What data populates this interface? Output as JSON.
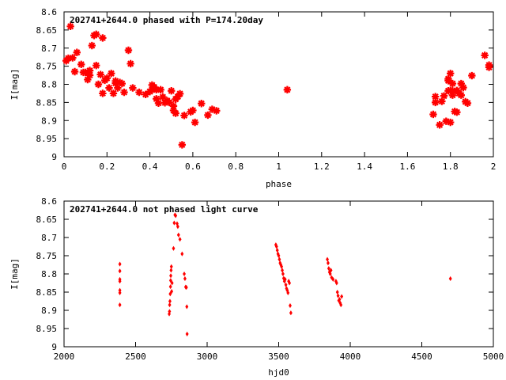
{
  "chart_data": [
    {
      "type": "scatter",
      "title": "202741+2644.0 phased with P=174.20day",
      "xlabel": "phase",
      "ylabel": "I[mag]",
      "xlim": [
        0,
        2
      ],
      "ylim": [
        8.6,
        9.0
      ],
      "y_inverted": true,
      "xticks": [
        "0",
        "0.2",
        "0.4",
        "0.6",
        "0.8",
        "1",
        "1.2",
        "1.4",
        "1.6",
        "1.8",
        "2"
      ],
      "yticks": [
        "8.6",
        "8.65",
        "8.7",
        "8.75",
        "8.8",
        "8.85",
        "8.9",
        "8.95",
        "9"
      ],
      "grid": false,
      "color": "#ff0000",
      "marker": "star",
      "series": [
        {
          "points": [
            [
              0.01,
              8.735
            ],
            [
              0.02,
              8.728
            ],
            [
              0.03,
              8.64
            ],
            [
              0.04,
              8.727
            ],
            [
              0.05,
              8.765
            ],
            [
              0.06,
              8.712
            ],
            [
              0.08,
              8.745
            ],
            [
              0.09,
              8.767
            ],
            [
              0.1,
              8.767
            ],
            [
              0.11,
              8.787
            ],
            [
              0.12,
              8.775
            ],
            [
              0.12,
              8.762
            ],
            [
              0.13,
              8.693
            ],
            [
              0.14,
              8.665
            ],
            [
              0.15,
              8.748
            ],
            [
              0.15,
              8.662
            ],
            [
              0.16,
              8.8
            ],
            [
              0.17,
              8.773
            ],
            [
              0.18,
              8.825
            ],
            [
              0.18,
              8.672
            ],
            [
              0.19,
              8.789
            ],
            [
              0.2,
              8.783
            ],
            [
              0.21,
              8.81
            ],
            [
              0.22,
              8.77
            ],
            [
              0.23,
              8.825
            ],
            [
              0.24,
              8.797
            ],
            [
              0.24,
              8.791
            ],
            [
              0.25,
              8.81
            ],
            [
              0.26,
              8.795
            ],
            [
              0.27,
              8.798
            ],
            [
              0.28,
              8.822
            ],
            [
              0.3,
              8.706
            ],
            [
              0.31,
              8.743
            ],
            [
              0.32,
              8.81
            ],
            [
              0.35,
              8.822
            ],
            [
              0.38,
              8.828
            ],
            [
              0.4,
              8.82
            ],
            [
              0.41,
              8.815
            ],
            [
              0.41,
              8.802
            ],
            [
              0.42,
              8.808
            ],
            [
              0.43,
              8.815
            ],
            [
              0.43,
              8.84
            ],
            [
              0.44,
              8.852
            ],
            [
              0.45,
              8.815
            ],
            [
              0.46,
              8.835
            ],
            [
              0.47,
              8.851
            ],
            [
              0.48,
              8.845
            ],
            [
              0.49,
              8.85
            ],
            [
              0.5,
              8.818
            ],
            [
              0.51,
              8.86
            ],
            [
              0.51,
              8.872
            ],
            [
              0.52,
              8.88
            ],
            [
              0.52,
              8.841
            ],
            [
              0.53,
              8.834
            ],
            [
              0.54,
              8.826
            ],
            [
              0.55,
              8.967
            ],
            [
              0.56,
              8.886
            ],
            [
              0.59,
              8.876
            ],
            [
              0.6,
              8.872
            ],
            [
              0.61,
              8.905
            ],
            [
              0.64,
              8.853
            ],
            [
              0.67,
              8.885
            ],
            [
              0.69,
              8.869
            ],
            [
              0.71,
              8.873
            ],
            [
              1.04,
              8.815
            ],
            [
              1.72,
              8.883
            ],
            [
              1.73,
              8.85
            ],
            [
              1.73,
              8.834
            ],
            [
              1.75,
              8.912
            ],
            [
              1.76,
              8.847
            ],
            [
              1.77,
              8.832
            ],
            [
              1.78,
              8.902
            ],
            [
              1.79,
              8.818
            ],
            [
              1.79,
              8.79
            ],
            [
              1.79,
              8.785
            ],
            [
              1.8,
              8.77
            ],
            [
              1.8,
              8.817
            ],
            [
              1.8,
              8.905
            ],
            [
              1.81,
              8.83
            ],
            [
              1.81,
              8.798
            ],
            [
              1.81,
              8.818
            ],
            [
              1.82,
              8.875
            ],
            [
              1.83,
              8.877
            ],
            [
              1.83,
              8.817
            ],
            [
              1.84,
              8.825
            ],
            [
              1.85,
              8.798
            ],
            [
              1.85,
              8.83
            ],
            [
              1.86,
              8.809
            ],
            [
              1.87,
              8.848
            ],
            [
              1.88,
              8.852
            ],
            [
              1.9,
              8.776
            ],
            [
              1.96,
              8.72
            ],
            [
              1.98,
              8.747
            ],
            [
              1.98,
              8.753
            ]
          ]
        }
      ]
    },
    {
      "type": "scatter",
      "title": "202741+2644.0 not phased light curve",
      "xlabel": "hjd0",
      "ylabel": "I[mag]",
      "xlim": [
        2000,
        5000
      ],
      "ylim": [
        8.6,
        9.0
      ],
      "y_inverted": true,
      "xticks": [
        "2000",
        "2500",
        "3000",
        "3500",
        "4000",
        "4500",
        "5000"
      ],
      "yticks": [
        "8.6",
        "8.65",
        "8.7",
        "8.75",
        "8.8",
        "8.85",
        "8.9",
        "8.95",
        "9"
      ],
      "grid": false,
      "color": "#ff0000",
      "marker": "small-diamond",
      "series": [
        {
          "points": [
            [
              2390,
              8.773
            ],
            [
              2390,
              8.792
            ],
            [
              2390,
              8.815
            ],
            [
              2390,
              8.82
            ],
            [
              2390,
              8.845
            ],
            [
              2390,
              8.852
            ],
            [
              2390,
              8.885
            ],
            [
              2735,
              8.91
            ],
            [
              2737,
              8.903
            ],
            [
              2738,
              8.885
            ],
            [
              2740,
              8.875
            ],
            [
              2742,
              8.855
            ],
            [
              2744,
              8.835
            ],
            [
              2745,
              8.818
            ],
            [
              2746,
              8.805
            ],
            [
              2748,
              8.79
            ],
            [
              2750,
              8.78
            ],
            [
              2752,
              8.848
            ],
            [
              2755,
              8.825
            ],
            [
              2765,
              8.73
            ],
            [
              2770,
              8.66
            ],
            [
              2775,
              8.638
            ],
            [
              2780,
              8.64
            ],
            [
              2790,
              8.662
            ],
            [
              2795,
              8.67
            ],
            [
              2800,
              8.693
            ],
            [
              2810,
              8.705
            ],
            [
              2825,
              8.745
            ],
            [
              2840,
              8.8
            ],
            [
              2845,
              8.813
            ],
            [
              2850,
              8.836
            ],
            [
              2855,
              8.837
            ],
            [
              2858,
              8.89
            ],
            [
              2860,
              8.965
            ],
            [
              3480,
              8.72
            ],
            [
              3485,
              8.725
            ],
            [
              3490,
              8.735
            ],
            [
              3495,
              8.745
            ],
            [
              3500,
              8.75
            ],
            [
              3505,
              8.76
            ],
            [
              3510,
              8.77
            ],
            [
              3515,
              8.775
            ],
            [
              3520,
              8.78
            ],
            [
              3525,
              8.79
            ],
            [
              3530,
              8.8
            ],
            [
              3535,
              8.812
            ],
            [
              3540,
              8.82
            ],
            [
              3545,
              8.815
            ],
            [
              3550,
              8.83
            ],
            [
              3555,
              8.84
            ],
            [
              3560,
              8.845
            ],
            [
              3565,
              8.852
            ],
            [
              3570,
              8.82
            ],
            [
              3575,
              8.825
            ],
            [
              3580,
              8.887
            ],
            [
              3585,
              8.907
            ],
            [
              3840,
              8.76
            ],
            [
              3845,
              8.77
            ],
            [
              3850,
              8.785
            ],
            [
              3855,
              8.795
            ],
            [
              3860,
              8.8
            ],
            [
              3865,
              8.79
            ],
            [
              3870,
              8.81
            ],
            [
              3880,
              8.815
            ],
            [
              3900,
              8.82
            ],
            [
              3905,
              8.825
            ],
            [
              3910,
              8.85
            ],
            [
              3915,
              8.86
            ],
            [
              3920,
              8.873
            ],
            [
              3925,
              8.87
            ],
            [
              3930,
              8.88
            ],
            [
              3935,
              8.885
            ],
            [
              3940,
              8.862
            ],
            [
              4700,
              8.813
            ]
          ]
        }
      ]
    }
  ]
}
